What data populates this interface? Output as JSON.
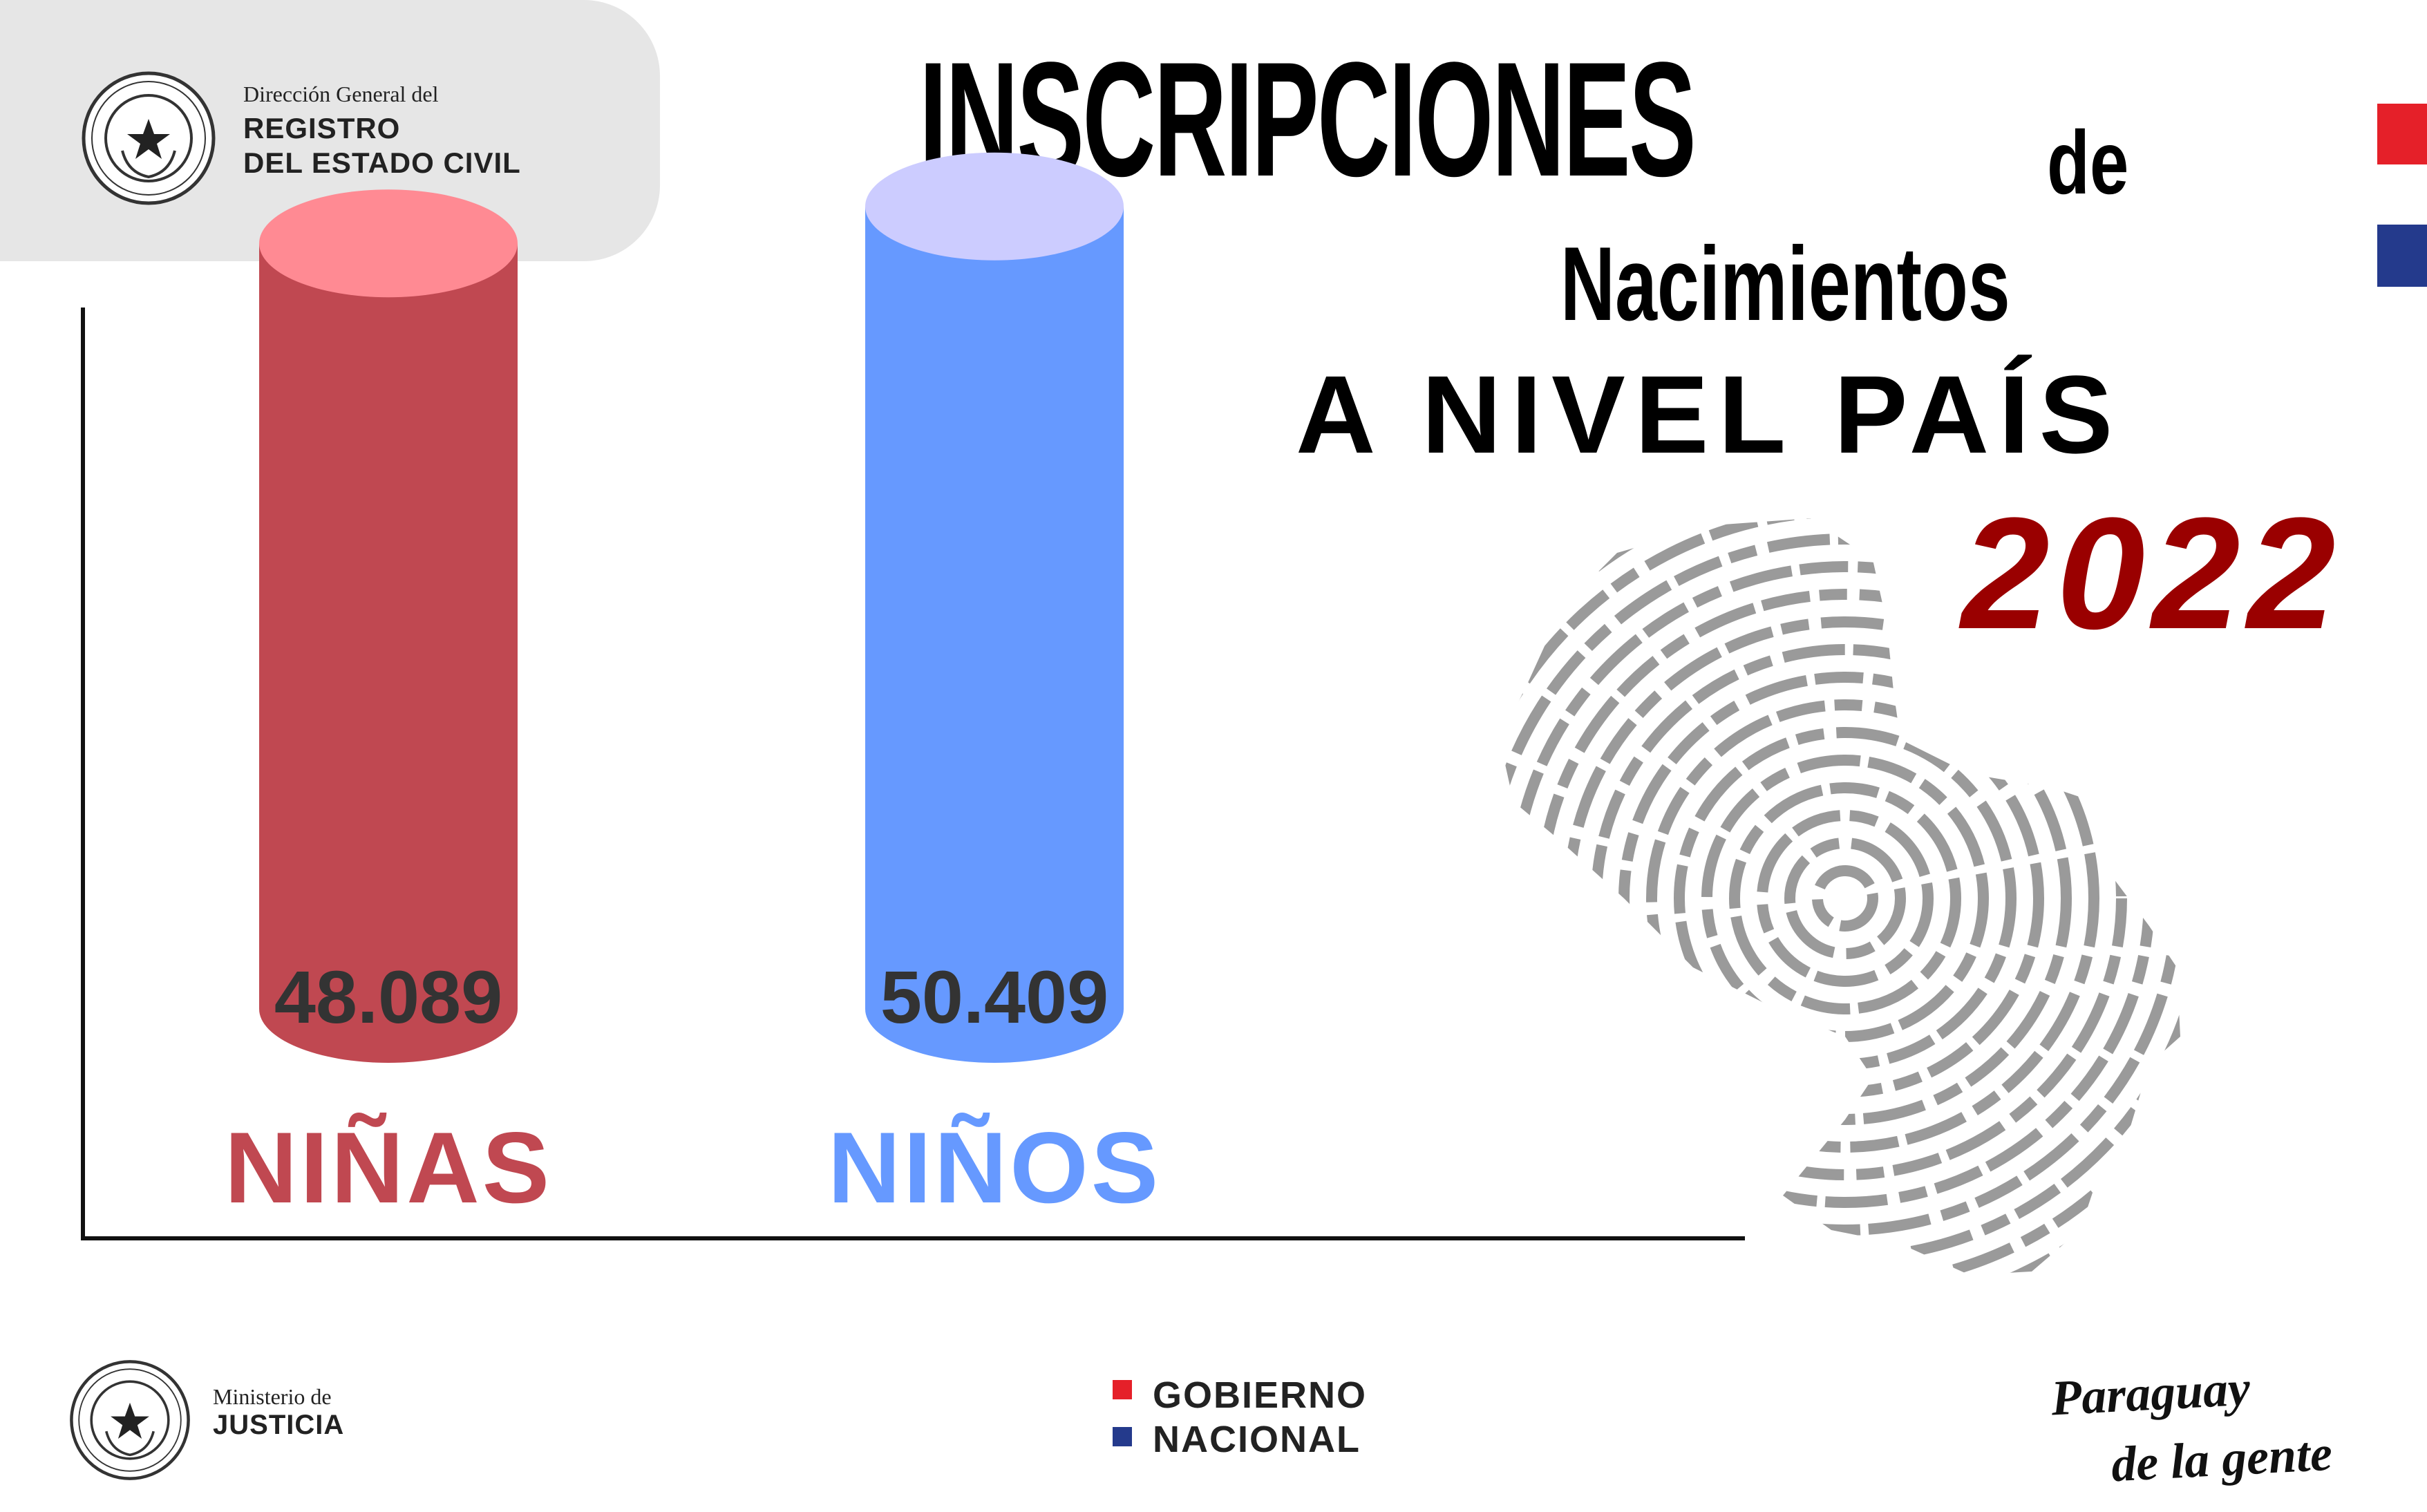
{
  "header": {
    "seal_icon": "coat-of-arms-seal-icon",
    "line1": "Dirección General del",
    "line2": "REGISTRO",
    "line3": "DEL ESTADO CIVIL"
  },
  "title": {
    "main": "INSCRIPCIONES",
    "de": "de",
    "nacimientos": "Nacimientos",
    "nivel": "A NIVEL PAÍS",
    "year": "2022"
  },
  "colors": {
    "ninas": "#c04851",
    "ninas_top": "#ff8a93",
    "ninos": "#6699ff",
    "ninos_top": "#ccccff",
    "year": "#9a0000",
    "flag_red": "#e52029",
    "flag_blue": "#243a8c"
  },
  "chart_data": {
    "type": "bar",
    "categories": [
      "NIÑAS",
      "NIÑOS"
    ],
    "values": [
      48089,
      50409
    ],
    "value_labels": [
      "48.089",
      "50.409"
    ],
    "title": "INSCRIPCIONES de Nacimientos A NIVEL PAÍS 2022",
    "xlabel": "",
    "ylabel": "",
    "ylim": [
      0,
      56000
    ],
    "grid": false,
    "legend": "none",
    "style": "3d-cylinder"
  },
  "decoration": {
    "map_icon": "paraguay-fingerprint-map-icon"
  },
  "footer": {
    "ministerio_line1": "Ministerio de",
    "ministerio_line2": "JUSTICIA",
    "gobierno_line1": "GOBIERNO",
    "gobierno_line2": "NACIONAL",
    "slogan_line1": "Paraguay",
    "slogan_line2": "de la gente"
  }
}
